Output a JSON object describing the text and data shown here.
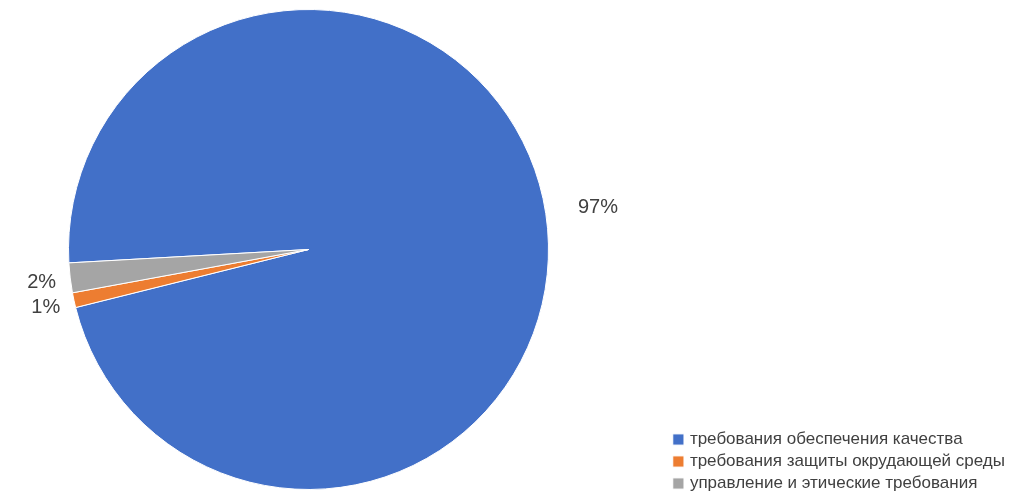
{
  "chart_data": {
    "type": "pie",
    "categories": [
      "требования обеспечения качества",
      "требования защиты окрудающей среды",
      "управление и этические требования"
    ],
    "values": [
      97,
      1,
      2
    ],
    "colors": [
      "#4270c8",
      "#ed7d31",
      "#a5a5a5"
    ],
    "value_labels": [
      "97%",
      "1%",
      "2%"
    ],
    "legend": "bottom right"
  }
}
